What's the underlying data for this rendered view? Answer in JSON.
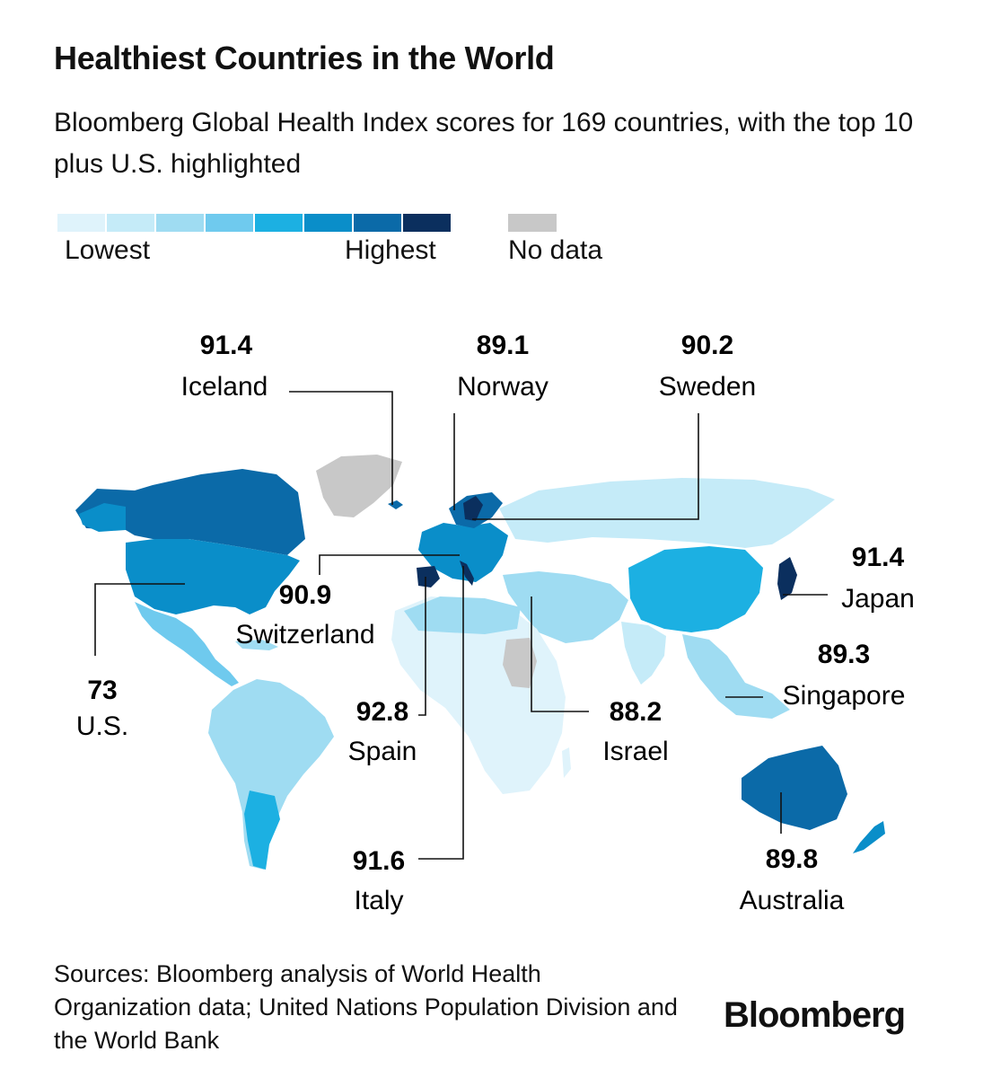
{
  "title": "Healthiest Countries in the World",
  "subtitle": "Bloomberg Global Health Index scores for 169 countries, with the top 10 plus U.S. highlighted",
  "legend": {
    "low_label": "Lowest",
    "high_label": "Highest",
    "nodata_label": "No data",
    "scale_colors": [
      "#dff3fb",
      "#c5ebf8",
      "#9fdcf2",
      "#6fcaee",
      "#1cb0e2",
      "#0a8ec9",
      "#0b6aa8",
      "#0b2f5e"
    ],
    "nodata_color": "#c8c8c8"
  },
  "callouts": [
    {
      "score": "91.4",
      "name": "Iceland"
    },
    {
      "score": "89.1",
      "name": "Norway"
    },
    {
      "score": "90.2",
      "name": "Sweden"
    },
    {
      "score": "91.4",
      "name": "Japan"
    },
    {
      "score": "90.9",
      "name": "Switzerland"
    },
    {
      "score": "89.3",
      "name": "Singapore"
    },
    {
      "score": "73",
      "name": "U.S."
    },
    {
      "score": "92.8",
      "name": "Spain"
    },
    {
      "score": "88.2",
      "name": "Israel"
    },
    {
      "score": "91.6",
      "name": "Italy"
    },
    {
      "score": "89.8",
      "name": "Australia"
    }
  ],
  "source": "Sources: Bloomberg analysis of World Health Organization data; United Nations Population Division and the World Bank",
  "brand": "Bloomberg"
}
